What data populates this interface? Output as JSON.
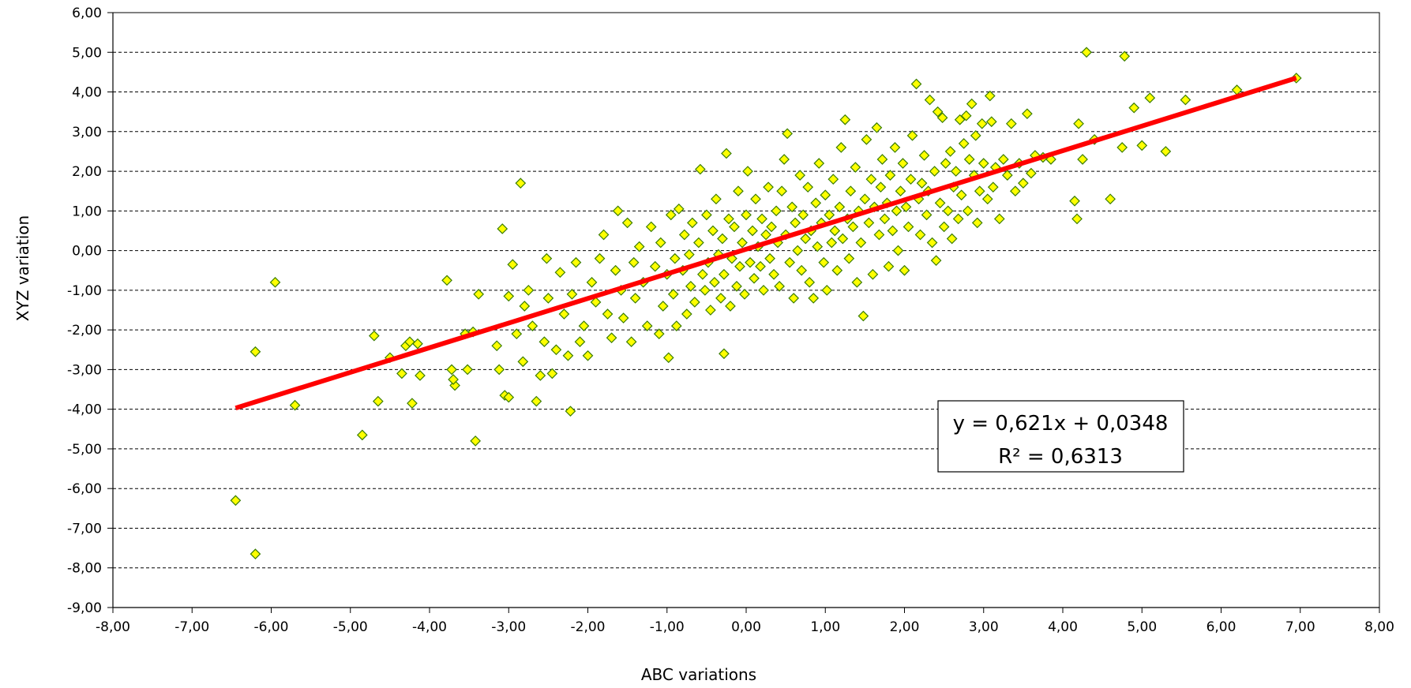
{
  "chart_data": {
    "type": "scatter",
    "xlabel": "ABC variations",
    "ylabel": "XYZ variation",
    "xlim": [
      -8,
      8
    ],
    "ylim": [
      -9,
      6
    ],
    "x_ticks": [
      "-8,00",
      "-7,00",
      "-6,00",
      "-5,00",
      "-4,00",
      "-3,00",
      "-2,00",
      "-1,00",
      "0,00",
      "1,00",
      "2,00",
      "3,00",
      "4,00",
      "5,00",
      "6,00",
      "7,00",
      "8,00"
    ],
    "y_ticks": [
      "-9,00",
      "-8,00",
      "-7,00",
      "-6,00",
      "-5,00",
      "-4,00",
      "-3,00",
      "-2,00",
      "-1,00",
      "0,00",
      "1,00",
      "2,00",
      "3,00",
      "4,00",
      "5,00",
      "6,00"
    ],
    "grid": "horizontal-dashed",
    "colors": {
      "marker_fill": "#ffff00",
      "marker_stroke": "#3a7d00",
      "trendline": "#ff0000",
      "grid": "#000000"
    },
    "trendline": {
      "slope": 0.621,
      "intercept": 0.0348,
      "x_range": [
        -6.45,
        6.95
      ]
    },
    "annotation": {
      "equation": "y = 0,621x + 0,0348",
      "r_squared": "R² = 0,6313"
    },
    "points": [
      [
        -6.45,
        -6.3
      ],
      [
        -6.2,
        -7.65
      ],
      [
        -6.2,
        -2.55
      ],
      [
        -5.95,
        -0.8
      ],
      [
        -5.7,
        -3.9
      ],
      [
        -4.85,
        -4.65
      ],
      [
        -4.7,
        -2.15
      ],
      [
        -4.65,
        -3.8
      ],
      [
        -4.5,
        -2.7
      ],
      [
        -4.35,
        -3.1
      ],
      [
        -4.3,
        -2.4
      ],
      [
        -4.25,
        -2.3
      ],
      [
        -4.22,
        -3.85
      ],
      [
        -4.15,
        -2.35
      ],
      [
        -4.12,
        -3.15
      ],
      [
        -3.78,
        -0.75
      ],
      [
        -3.72,
        -3.0
      ],
      [
        -3.68,
        -3.4
      ],
      [
        -3.7,
        -3.25
      ],
      [
        -3.55,
        -2.1
      ],
      [
        -3.52,
        -3.0
      ],
      [
        -3.45,
        -2.05
      ],
      [
        -3.42,
        -4.8
      ],
      [
        -3.38,
        -1.1
      ],
      [
        -3.15,
        -2.4
      ],
      [
        -3.12,
        -3.0
      ],
      [
        -3.08,
        0.55
      ],
      [
        -3.05,
        -3.65
      ],
      [
        -3.0,
        -1.15
      ],
      [
        -3.0,
        -3.7
      ],
      [
        -2.95,
        -0.35
      ],
      [
        -2.9,
        -2.1
      ],
      [
        -2.85,
        1.7
      ],
      [
        -2.82,
        -2.8
      ],
      [
        -2.8,
        -1.4
      ],
      [
        -2.75,
        -1.0
      ],
      [
        -2.7,
        -1.9
      ],
      [
        -2.65,
        -3.8
      ],
      [
        -2.6,
        -3.15
      ],
      [
        -2.55,
        -2.3
      ],
      [
        -2.52,
        -0.2
      ],
      [
        -2.5,
        -1.2
      ],
      [
        -2.45,
        -3.1
      ],
      [
        -2.4,
        -2.5
      ],
      [
        -2.35,
        -0.55
      ],
      [
        -2.3,
        -1.6
      ],
      [
        -2.25,
        -2.65
      ],
      [
        -2.22,
        -4.05
      ],
      [
        -2.2,
        -1.1
      ],
      [
        -2.15,
        -0.3
      ],
      [
        -2.1,
        -2.3
      ],
      [
        -2.05,
        -1.9
      ],
      [
        -2.0,
        -2.65
      ],
      [
        -1.95,
        -0.8
      ],
      [
        -1.9,
        -1.3
      ],
      [
        -1.85,
        -0.2
      ],
      [
        -1.8,
        0.4
      ],
      [
        -1.75,
        -1.6
      ],
      [
        -1.7,
        -2.2
      ],
      [
        -1.65,
        -0.5
      ],
      [
        -1.62,
        1.0
      ],
      [
        -1.58,
        -1.0
      ],
      [
        -1.55,
        -1.7
      ],
      [
        -1.5,
        0.7
      ],
      [
        -1.45,
        -2.3
      ],
      [
        -1.42,
        -0.3
      ],
      [
        -1.4,
        -1.2
      ],
      [
        -1.35,
        0.1
      ],
      [
        -1.3,
        -0.8
      ],
      [
        -1.25,
        -1.9
      ],
      [
        -1.2,
        0.6
      ],
      [
        -1.15,
        -0.4
      ],
      [
        -1.1,
        -2.1
      ],
      [
        -1.08,
        0.2
      ],
      [
        -1.05,
        -1.4
      ],
      [
        -1.0,
        -0.6
      ],
      [
        -0.98,
        -2.7
      ],
      [
        -0.95,
        0.9
      ],
      [
        -0.92,
        -1.1
      ],
      [
        -0.9,
        -0.2
      ],
      [
        -0.88,
        -1.9
      ],
      [
        -0.85,
        1.05
      ],
      [
        -0.8,
        -0.5
      ],
      [
        -0.78,
        0.4
      ],
      [
        -0.75,
        -1.6
      ],
      [
        -0.72,
        -0.1
      ],
      [
        -0.7,
        -0.9
      ],
      [
        -0.68,
        0.7
      ],
      [
        -0.65,
        -1.3
      ],
      [
        -0.6,
        0.2
      ],
      [
        -0.58,
        2.05
      ],
      [
        -0.55,
        -0.6
      ],
      [
        -0.52,
        -1.0
      ],
      [
        -0.5,
        0.9
      ],
      [
        -0.48,
        -0.3
      ],
      [
        -0.45,
        -1.5
      ],
      [
        -0.42,
        0.5
      ],
      [
        -0.4,
        -0.8
      ],
      [
        -0.38,
        1.3
      ],
      [
        -0.35,
        -0.1
      ],
      [
        -0.32,
        -1.2
      ],
      [
        -0.3,
        0.3
      ],
      [
        -0.28,
        -0.6
      ],
      [
        -0.25,
        2.45
      ],
      [
        -0.28,
        -2.6
      ],
      [
        -0.22,
        0.8
      ],
      [
        -0.2,
        -1.4
      ],
      [
        -0.18,
        -0.2
      ],
      [
        -0.15,
        0.6
      ],
      [
        -0.12,
        -0.9
      ],
      [
        -0.1,
        1.5
      ],
      [
        -0.08,
        -0.4
      ],
      [
        -0.05,
        0.2
      ],
      [
        -0.02,
        -1.1
      ],
      [
        0.0,
        0.9
      ],
      [
        0.02,
        2.0
      ],
      [
        0.05,
        -0.3
      ],
      [
        0.08,
        0.5
      ],
      [
        0.1,
        -0.7
      ],
      [
        0.12,
        1.3
      ],
      [
        0.15,
        0.1
      ],
      [
        0.18,
        -0.4
      ],
      [
        0.2,
        0.8
      ],
      [
        0.22,
        -1.0
      ],
      [
        0.25,
        0.4
      ],
      [
        0.28,
        1.6
      ],
      [
        0.3,
        -0.2
      ],
      [
        0.32,
        0.6
      ],
      [
        0.35,
        -0.6
      ],
      [
        0.38,
        1.0
      ],
      [
        0.4,
        0.2
      ],
      [
        0.42,
        -0.9
      ],
      [
        0.45,
        1.5
      ],
      [
        0.48,
        2.3
      ],
      [
        0.5,
        0.4
      ],
      [
        0.52,
        2.95
      ],
      [
        0.55,
        -0.3
      ],
      [
        0.58,
        1.1
      ],
      [
        0.6,
        -1.2
      ],
      [
        0.62,
        0.7
      ],
      [
        0.65,
        0.0
      ],
      [
        0.68,
        1.9
      ],
      [
        0.7,
        -0.5
      ],
      [
        0.72,
        0.9
      ],
      [
        0.75,
        0.3
      ],
      [
        0.78,
        1.6
      ],
      [
        0.8,
        -0.8
      ],
      [
        0.82,
        0.5
      ],
      [
        0.85,
        -1.2
      ],
      [
        0.88,
        1.2
      ],
      [
        0.9,
        0.1
      ],
      [
        0.92,
        2.2
      ],
      [
        0.95,
        0.7
      ],
      [
        0.98,
        -0.3
      ],
      [
        1.0,
        1.4
      ],
      [
        1.02,
        -1.0
      ],
      [
        1.05,
        0.9
      ],
      [
        1.08,
        0.2
      ],
      [
        1.1,
        1.8
      ],
      [
        1.12,
        0.5
      ],
      [
        1.15,
        -0.5
      ],
      [
        1.18,
        1.1
      ],
      [
        1.2,
        2.6
      ],
      [
        1.22,
        0.3
      ],
      [
        1.25,
        3.3
      ],
      [
        1.28,
        0.8
      ],
      [
        1.3,
        -0.2
      ],
      [
        1.32,
        1.5
      ],
      [
        1.35,
        0.6
      ],
      [
        1.38,
        2.1
      ],
      [
        1.4,
        -0.8
      ],
      [
        1.42,
        1.0
      ],
      [
        1.45,
        0.2
      ],
      [
        1.48,
        -1.65
      ],
      [
        1.5,
        1.3
      ],
      [
        1.52,
        2.8
      ],
      [
        1.55,
        0.7
      ],
      [
        1.58,
        1.8
      ],
      [
        1.6,
        -0.6
      ],
      [
        1.62,
        1.1
      ],
      [
        1.65,
        3.1
      ],
      [
        1.68,
        0.4
      ],
      [
        1.7,
        1.6
      ],
      [
        1.72,
        2.3
      ],
      [
        1.75,
        0.8
      ],
      [
        1.78,
        1.2
      ],
      [
        1.8,
        -0.4
      ],
      [
        1.82,
        1.9
      ],
      [
        1.85,
        0.5
      ],
      [
        1.88,
        2.6
      ],
      [
        1.9,
        1.0
      ],
      [
        1.92,
        0.0
      ],
      [
        1.95,
        1.5
      ],
      [
        1.98,
        2.2
      ],
      [
        2.0,
        -0.5
      ],
      [
        2.02,
        1.1
      ],
      [
        2.05,
        0.6
      ],
      [
        2.08,
        1.8
      ],
      [
        2.1,
        2.9
      ],
      [
        2.15,
        4.2
      ],
      [
        2.18,
        1.3
      ],
      [
        2.2,
        0.4
      ],
      [
        2.22,
        1.7
      ],
      [
        2.25,
        2.4
      ],
      [
        2.28,
        0.9
      ],
      [
        2.3,
        1.5
      ],
      [
        2.32,
        3.8
      ],
      [
        2.35,
        0.2
      ],
      [
        2.38,
        2.0
      ],
      [
        2.4,
        -0.25
      ],
      [
        2.42,
        3.5
      ],
      [
        2.45,
        1.2
      ],
      [
        2.48,
        3.35
      ],
      [
        2.5,
        0.6
      ],
      [
        2.52,
        2.2
      ],
      [
        2.55,
        1.0
      ],
      [
        2.58,
        2.5
      ],
      [
        2.6,
        0.3
      ],
      [
        2.62,
        1.6
      ],
      [
        2.65,
        2.0
      ],
      [
        2.68,
        0.8
      ],
      [
        2.7,
        3.3
      ],
      [
        2.72,
        1.4
      ],
      [
        2.75,
        2.7
      ],
      [
        2.78,
        3.4
      ],
      [
        2.8,
        1.0
      ],
      [
        2.82,
        2.3
      ],
      [
        2.85,
        3.7
      ],
      [
        2.88,
        1.9
      ],
      [
        2.9,
        2.9
      ],
      [
        2.92,
        0.7
      ],
      [
        2.95,
        1.5
      ],
      [
        2.98,
        3.2
      ],
      [
        3.0,
        2.2
      ],
      [
        3.05,
        1.3
      ],
      [
        3.08,
        3.9
      ],
      [
        3.1,
        3.25
      ],
      [
        3.12,
        1.6
      ],
      [
        3.15,
        2.1
      ],
      [
        3.2,
        0.8
      ],
      [
        3.25,
        2.3
      ],
      [
        3.3,
        1.9
      ],
      [
        3.35,
        3.2
      ],
      [
        3.4,
        1.5
      ],
      [
        3.45,
        2.2
      ],
      [
        3.5,
        1.7
      ],
      [
        3.55,
        3.45
      ],
      [
        3.6,
        1.95
      ],
      [
        3.65,
        2.4
      ],
      [
        3.75,
        2.35
      ],
      [
        3.85,
        2.3
      ],
      [
        4.15,
        1.25
      ],
      [
        4.18,
        0.8
      ],
      [
        4.2,
        3.2
      ],
      [
        4.25,
        2.3
      ],
      [
        4.3,
        5.0
      ],
      [
        4.4,
        2.8
      ],
      [
        4.6,
        1.3
      ],
      [
        4.75,
        2.6
      ],
      [
        4.78,
        4.9
      ],
      [
        4.9,
        3.6
      ],
      [
        5.0,
        2.65
      ],
      [
        5.1,
        3.85
      ],
      [
        5.3,
        2.5
      ],
      [
        5.55,
        3.8
      ],
      [
        6.2,
        4.05
      ],
      [
        6.95,
        4.35
      ]
    ]
  }
}
